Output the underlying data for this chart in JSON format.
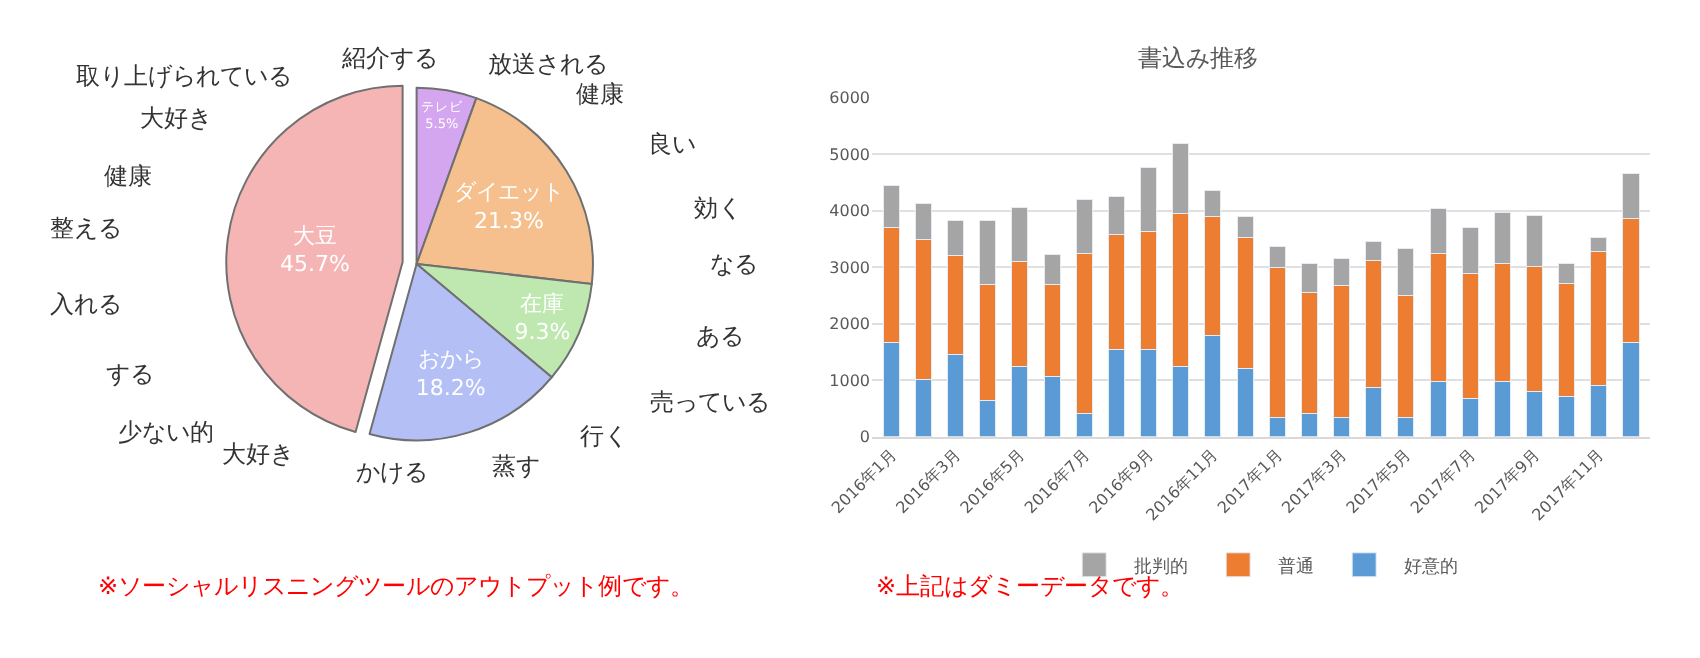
{
  "chart_data": [
    {
      "type": "pie",
      "categories": [
        "テレビ",
        "ダイエット",
        "在庫",
        "おから",
        "大豆"
      ],
      "values": [
        5.5,
        21.3,
        9.3,
        18.2,
        45.7
      ],
      "value_labels": [
        "5.5%",
        "21.3%",
        "9.3%",
        "18.2%",
        "45.7%"
      ],
      "colors": [
        "#d5a6f0",
        "#f5c08e",
        "#bfe8b0",
        "#b4c0f5",
        "#f5b5b5"
      ],
      "annotations": [
        "取り上げられている",
        "紹介する",
        "放送される",
        "健康",
        "良い",
        "効く",
        "なる",
        "ある",
        "売っている",
        "行く",
        "蒸す",
        "かける",
        "大好き",
        "少ない的",
        "する",
        "入れる",
        "整える",
        "健康",
        "大好き",
        "※ソーシャルリスニングツールのアウトプット例です。"
      ]
    },
    {
      "type": "bar",
      "stacked": true,
      "title": "書込み推移",
      "categories": [
        "2016年1月",
        null,
        "2016年3月",
        null,
        "2016年5月",
        null,
        "2016年7月",
        null,
        "2016年9月",
        null,
        "2016年11月",
        null,
        "2017年1月",
        null,
        "2017年3月",
        null,
        "2017年5月",
        null,
        "2017年7月",
        null,
        "2017年9月",
        null,
        "2017年11月",
        null
      ],
      "series": [
        {
          "name": "好意的",
          "color": "#5b9bd5",
          "values": [
            1670,
            1020,
            1450,
            650,
            1240,
            1060,
            410,
            1540,
            1540,
            1250,
            1790,
            1200,
            350,
            420,
            350,
            880,
            340,
            980,
            670,
            980,
            810,
            720,
            900,
            1670
          ]
        },
        {
          "name": "普通",
          "color": "#ed7d31",
          "values": [
            2030,
            2470,
            1750,
            2040,
            1860,
            1630,
            2830,
            2030,
            2090,
            2700,
            2110,
            2320,
            2640,
            2130,
            2320,
            2240,
            2160,
            2260,
            2220,
            2090,
            2210,
            2000,
            2380,
            2200
          ]
        },
        {
          "name": "批判的",
          "color": "#a5a5a5",
          "values": [
            740,
            630,
            630,
            1140,
            950,
            530,
            960,
            680,
            1140,
            1230,
            450,
            380,
            380,
            510,
            490,
            330,
            830,
            790,
            810,
            900,
            900,
            340,
            250,
            780
          ]
        }
      ],
      "ylim": [
        0,
        6000
      ],
      "yticks": [
        0,
        1000,
        2000,
        3000,
        4000,
        5000,
        6000
      ],
      "grid": "y",
      "legend": "bottom",
      "annotations": [
        "※上記はダミーデータです。"
      ]
    }
  ]
}
